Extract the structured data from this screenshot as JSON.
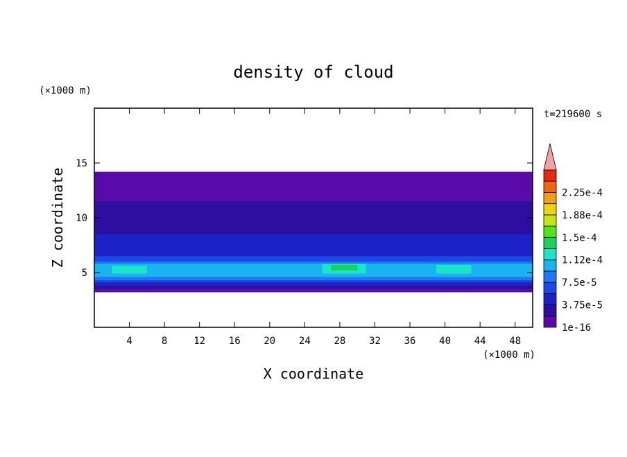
{
  "chart_data": {
    "type": "heatmap",
    "title": "density of cloud",
    "xlabel": "X coordinate",
    "ylabel": "Z coordinate",
    "x_unit": "(×1000 m)",
    "y_unit": "(×1000 m)",
    "time_label": "t=219600 s",
    "xlim": [
      0,
      50
    ],
    "ylim": [
      0,
      20
    ],
    "x_ticks": [
      4,
      8,
      12,
      16,
      20,
      24,
      28,
      32,
      36,
      40,
      44,
      48
    ],
    "y_ticks": [
      5,
      10,
      15
    ],
    "colorbar": {
      "labels": [
        "1e-16",
        "3.75e-5",
        "7.5e-5",
        "1.12e-4",
        "1.5e-4",
        "1.88e-4",
        "2.25e-4"
      ],
      "levels": [
        1e-16,
        1.875e-05,
        3.75e-05,
        5.625e-05,
        7.5e-05,
        9.375e-05,
        0.0001125,
        0.00013125,
        0.00015,
        0.00016875,
        0.0001875,
        0.00020625,
        0.000225,
        0.00024375
      ],
      "colors": [
        "#5a0aa8",
        "#2c0fa0",
        "#1d22c8",
        "#1e48e6",
        "#1e78f0",
        "#17b4f0",
        "#19e6c8",
        "#19d25a",
        "#50e614",
        "#c8e614",
        "#f0d214",
        "#f0a014",
        "#f06414",
        "#e62814"
      ],
      "extend_color": "#f4a0a0"
    },
    "fields": [
      {
        "x": [
          0,
          50
        ],
        "z": [
          3.2,
          14.2
        ],
        "value": 1e-16
      },
      {
        "x": [
          0,
          50
        ],
        "z": [
          3.5,
          11.5
        ],
        "value": 1.875e-05
      },
      {
        "x": [
          0,
          50
        ],
        "z": [
          3.8,
          8.5
        ],
        "value": 3.75e-05
      },
      {
        "x": [
          0,
          50
        ],
        "z": [
          4.1,
          6.5
        ],
        "value": 5.625e-05
      },
      {
        "x": [
          0,
          50
        ],
        "z": [
          4.3,
          6.0
        ],
        "value": 7.5e-05
      },
      {
        "x": [
          0,
          50
        ],
        "z": [
          4.6,
          5.8
        ],
        "value": 9.375e-05
      },
      {
        "x": [
          2,
          6
        ],
        "z": [
          4.9,
          5.6
        ],
        "value": 0.0001125
      },
      {
        "x": [
          26,
          31
        ],
        "z": [
          4.9,
          5.8
        ],
        "value": 0.0001125
      },
      {
        "x": [
          39,
          43
        ],
        "z": [
          4.9,
          5.7
        ],
        "value": 0.0001125
      },
      {
        "x": [
          27,
          30
        ],
        "z": [
          5.2,
          5.7
        ],
        "value": 0.00013125
      }
    ]
  }
}
